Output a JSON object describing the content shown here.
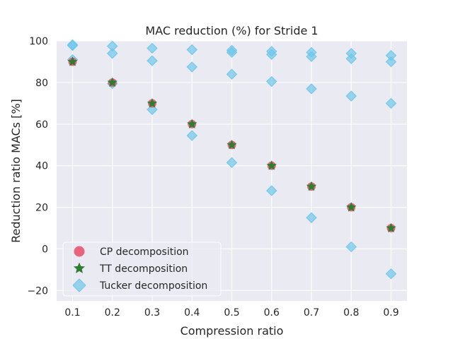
{
  "chart_data": {
    "type": "scatter",
    "title": "MAC reduction (%) for Stride 1",
    "xlabel": "Compression ratio",
    "ylabel": "Reduction ratio MACs [%]",
    "xlim": [
      0.06,
      0.94
    ],
    "ylim": [
      -25,
      100
    ],
    "xticks": [
      0.1,
      0.2,
      0.3,
      0.4,
      0.5,
      0.6,
      0.7,
      0.8,
      0.9
    ],
    "xtick_labels": [
      "0.1",
      "0.2",
      "0.3",
      "0.4",
      "0.5",
      "0.6",
      "0.7",
      "0.8",
      "0.9"
    ],
    "yticks": [
      -20,
      0,
      20,
      40,
      60,
      80,
      100
    ],
    "ytick_labels": [
      "−20",
      "0",
      "20",
      "40",
      "60",
      "80",
      "100"
    ],
    "grid": true,
    "legend_position": "lower-left",
    "series": [
      {
        "name": "CP decomposition",
        "marker": "circle",
        "color": "#e8556d",
        "points": [
          [
            0.1,
            90
          ],
          [
            0.2,
            80
          ],
          [
            0.3,
            70
          ],
          [
            0.4,
            60
          ],
          [
            0.5,
            50
          ],
          [
            0.6,
            40
          ],
          [
            0.7,
            30
          ],
          [
            0.8,
            20
          ],
          [
            0.9,
            10
          ]
        ]
      },
      {
        "name": "TT decomposition",
        "marker": "star",
        "color": "#2e7d32",
        "points": [
          [
            0.1,
            90
          ],
          [
            0.2,
            80
          ],
          [
            0.3,
            70
          ],
          [
            0.4,
            60
          ],
          [
            0.5,
            50
          ],
          [
            0.6,
            40
          ],
          [
            0.7,
            30
          ],
          [
            0.8,
            20
          ],
          [
            0.9,
            10
          ]
        ]
      },
      {
        "name": "Tucker decomposition",
        "marker": "diamond",
        "color": "#6ec6ea",
        "points": [
          [
            0.1,
            98.2
          ],
          [
            0.1,
            97.8
          ],
          [
            0.1,
            91
          ],
          [
            0.2,
            97.5
          ],
          [
            0.2,
            94
          ],
          [
            0.2,
            79.5
          ],
          [
            0.3,
            96.5
          ],
          [
            0.3,
            90.5
          ],
          [
            0.3,
            67
          ],
          [
            0.4,
            95.8
          ],
          [
            0.4,
            87.5
          ],
          [
            0.4,
            54.5
          ],
          [
            0.5,
            95.5
          ],
          [
            0.5,
            94.5
          ],
          [
            0.5,
            84
          ],
          [
            0.5,
            41.5
          ],
          [
            0.6,
            95
          ],
          [
            0.6,
            93.5
          ],
          [
            0.6,
            80.5
          ],
          [
            0.6,
            28
          ],
          [
            0.7,
            94.5
          ],
          [
            0.7,
            92.5
          ],
          [
            0.7,
            77
          ],
          [
            0.7,
            15
          ],
          [
            0.8,
            94
          ],
          [
            0.8,
            91.5
          ],
          [
            0.8,
            73.5
          ],
          [
            0.8,
            1
          ],
          [
            0.9,
            93
          ],
          [
            0.9,
            90
          ],
          [
            0.9,
            70
          ],
          [
            0.9,
            -12
          ]
        ]
      }
    ]
  }
}
